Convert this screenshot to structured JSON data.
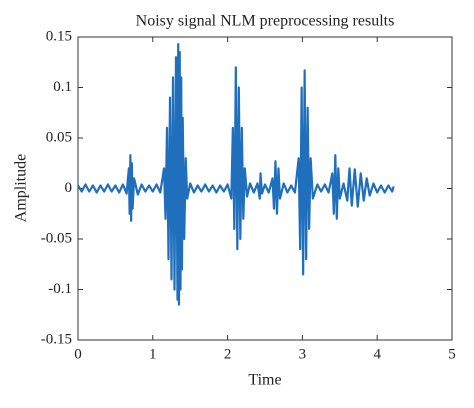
{
  "chart_data": {
    "type": "line",
    "title": "Noisy signal NLM preprocessing results",
    "x_label": "Time",
    "y_label": "Amplitude",
    "color": "#1f6fbd",
    "xlim": [
      0,
      5
    ],
    "xticks": [
      0,
      1,
      2,
      3,
      4,
      5
    ],
    "ylim": [
      -0.15,
      0.15
    ],
    "yticks": [
      -0.15,
      -0.1,
      -0.05,
      0,
      0.05,
      0.1,
      0.15
    ],
    "x": [
      0,
      0.05,
      0.1,
      0.15,
      0.2,
      0.25,
      0.3,
      0.35,
      0.4,
      0.45,
      0.5,
      0.55,
      0.6,
      0.65,
      0.68,
      0.69,
      0.7,
      0.71,
      0.72,
      0.73,
      0.75,
      0.8,
      0.85,
      0.9,
      0.95,
      1.0,
      1.05,
      1.1,
      1.15,
      1.17,
      1.19,
      1.21,
      1.23,
      1.25,
      1.27,
      1.29,
      1.31,
      1.33,
      1.34,
      1.35,
      1.36,
      1.37,
      1.38,
      1.39,
      1.4,
      1.42,
      1.44,
      1.46,
      1.5,
      1.55,
      1.6,
      1.65,
      1.7,
      1.75,
      1.8,
      1.85,
      1.9,
      1.95,
      2.0,
      2.05,
      2.07,
      2.09,
      2.11,
      2.13,
      2.15,
      2.17,
      2.19,
      2.21,
      2.23,
      2.26,
      2.3,
      2.35,
      2.4,
      2.43,
      2.44,
      2.46,
      2.5,
      2.55,
      2.6,
      2.62,
      2.64,
      2.66,
      2.68,
      2.7,
      2.75,
      2.8,
      2.85,
      2.9,
      2.95,
      2.97,
      2.99,
      3.01,
      3.03,
      3.05,
      3.07,
      3.09,
      3.11,
      3.14,
      3.2,
      3.25,
      3.3,
      3.35,
      3.4,
      3.42,
      3.44,
      3.46,
      3.48,
      3.5,
      3.55,
      3.6,
      3.63,
      3.66,
      3.7,
      3.74,
      3.78,
      3.82,
      3.86,
      3.9,
      3.95,
      4.0,
      4.05,
      4.1,
      4.15,
      4.2,
      4.22
    ],
    "values": [
      0.003,
      -0.003,
      0.004,
      -0.003,
      0.003,
      -0.004,
      0.003,
      -0.003,
      0.004,
      -0.003,
      0.003,
      -0.004,
      0.004,
      -0.005,
      0.02,
      -0.025,
      0.033,
      -0.032,
      0.025,
      -0.02,
      0.01,
      -0.006,
      0.004,
      -0.003,
      0.003,
      -0.003,
      0.004,
      -0.004,
      0.02,
      -0.03,
      0.06,
      -0.07,
      0.09,
      -0.09,
      0.11,
      -0.1,
      0.13,
      -0.11,
      0.143,
      -0.115,
      0.135,
      -0.1,
      0.11,
      -0.08,
      0.07,
      -0.05,
      0.03,
      -0.01,
      0.005,
      -0.004,
      0.003,
      -0.003,
      0.004,
      -0.003,
      0.003,
      -0.004,
      0.003,
      -0.003,
      0.004,
      -0.01,
      0.06,
      -0.04,
      0.12,
      -0.06,
      0.1,
      -0.05,
      0.06,
      -0.03,
      0.02,
      -0.008,
      0.005,
      -0.004,
      0.005,
      -0.01,
      0.015,
      -0.005,
      0.004,
      -0.004,
      0.01,
      -0.02,
      0.027,
      -0.025,
      0.02,
      -0.01,
      0.005,
      -0.004,
      0.003,
      -0.004,
      0.03,
      -0.06,
      0.1,
      -0.085,
      0.117,
      -0.07,
      0.08,
      -0.04,
      0.03,
      -0.01,
      0.004,
      -0.003,
      0.004,
      -0.004,
      0.015,
      -0.025,
      0.033,
      -0.03,
      0.02,
      -0.01,
      0.005,
      -0.012,
      0.02,
      -0.017,
      0.019,
      -0.018,
      0.015,
      -0.012,
      0.01,
      -0.007,
      0.005,
      -0.004,
      0.003,
      -0.004,
      0.003,
      -0.003,
      0.002
    ]
  }
}
